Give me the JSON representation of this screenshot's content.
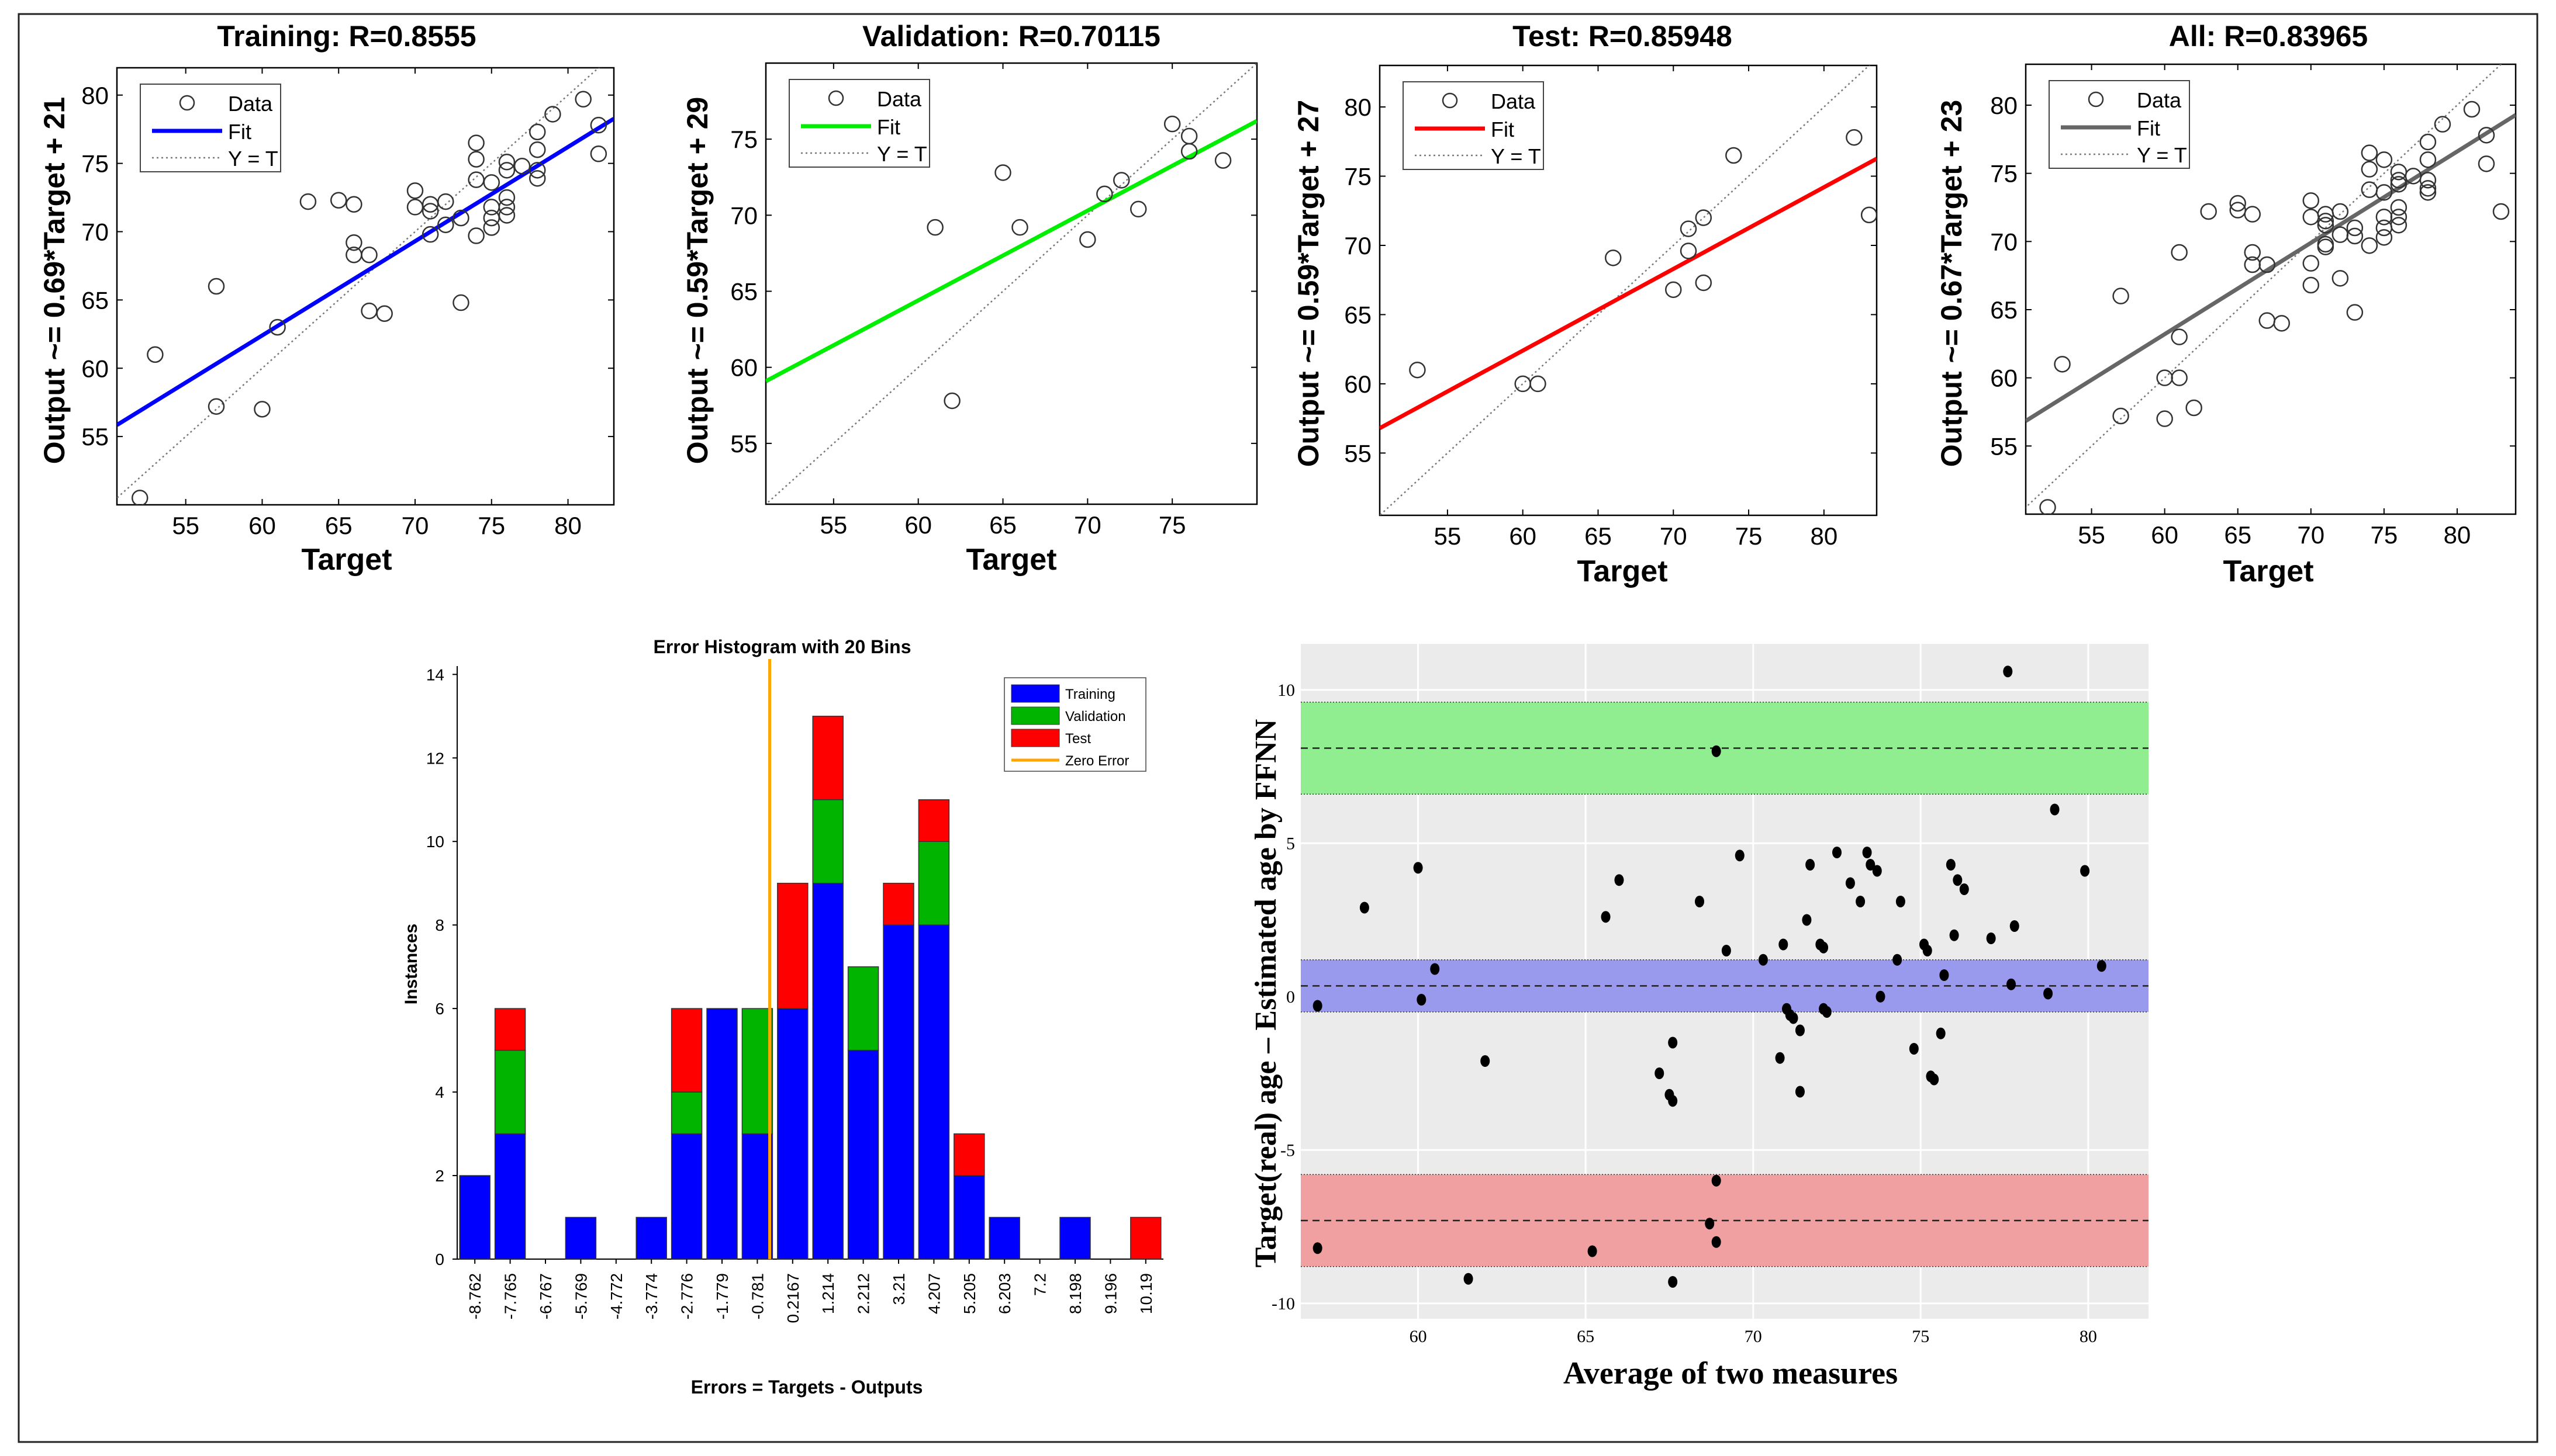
{
  "chart_data": [
    {
      "type": "scatter",
      "title": "Training: R=0.8555",
      "xlabel": "Target",
      "ylabel": "Output ~= 0.69*Target + 21",
      "xlim": [
        50.5,
        83
      ],
      "ylim": [
        50,
        82
      ],
      "xticks": [
        "55",
        "60",
        "65",
        "70",
        "75",
        "80"
      ],
      "yticks": [
        "55",
        "60",
        "65",
        "70",
        "75",
        "80"
      ],
      "fit": {
        "slope": 0.69,
        "intercept": 21,
        "color": "#0000ff"
      },
      "legend": [
        "Data",
        "Fit",
        "Y = T"
      ],
      "points": [
        [
          52,
          50.5
        ],
        [
          53,
          61
        ],
        [
          57,
          66
        ],
        [
          57,
          57.2
        ],
        [
          60,
          57
        ],
        [
          61,
          63
        ],
        [
          63,
          72.2
        ],
        [
          65,
          72.3
        ],
        [
          66,
          72
        ],
        [
          66,
          69.2
        ],
        [
          66,
          68.3
        ],
        [
          67,
          68.3
        ],
        [
          67,
          64.2
        ],
        [
          68,
          64
        ],
        [
          70,
          73
        ],
        [
          70,
          71.8
        ],
        [
          71,
          72
        ],
        [
          71,
          71.5
        ],
        [
          71,
          69.8
        ],
        [
          72,
          70.5
        ],
        [
          72,
          72.2
        ],
        [
          73,
          71
        ],
        [
          73,
          64.8
        ],
        [
          74,
          76.5
        ],
        [
          74,
          75.3
        ],
        [
          74,
          73.8
        ],
        [
          74,
          69.7
        ],
        [
          75,
          73.6
        ],
        [
          75,
          71.8
        ],
        [
          75,
          71
        ],
        [
          75,
          70.3
        ],
        [
          76,
          75.1
        ],
        [
          76,
          74.5
        ],
        [
          76,
          72.5
        ],
        [
          76,
          71.8
        ],
        [
          76,
          71.2
        ],
        [
          77,
          74.8
        ],
        [
          78,
          77.3
        ],
        [
          78,
          76
        ],
        [
          78,
          74.5
        ],
        [
          78,
          73.9
        ],
        [
          79,
          78.6
        ],
        [
          81,
          79.7
        ],
        [
          82,
          77.8
        ],
        [
          82,
          75.7
        ]
      ]
    },
    {
      "type": "scatter",
      "title": "Validation: R=0.70115",
      "xlabel": "Target",
      "ylabel": "Output ~= 0.59*Target + 29",
      "xlim": [
        51,
        80
      ],
      "ylim": [
        51,
        80
      ],
      "xticks": [
        "55",
        "60",
        "65",
        "70",
        "75"
      ],
      "yticks": [
        "55",
        "60",
        "65",
        "70",
        "75"
      ],
      "fit": {
        "slope": 0.59,
        "intercept": 29,
        "color": "#00ee00"
      },
      "legend": [
        "Data",
        "Fit",
        "Y = T"
      ],
      "points": [
        [
          61,
          69.2
        ],
        [
          62,
          57.8
        ],
        [
          65,
          72.8
        ],
        [
          66,
          69.2
        ],
        [
          70,
          68.4
        ],
        [
          71,
          71.4
        ],
        [
          72,
          72.3
        ],
        [
          73,
          70.4
        ],
        [
          75,
          76
        ],
        [
          76,
          75.2
        ],
        [
          76,
          74.2
        ],
        [
          78,
          73.6
        ]
      ]
    },
    {
      "type": "scatter",
      "title": "Test: R=0.85948",
      "xlabel": "Target",
      "ylabel": "Output ~= 0.59*Target + 27",
      "xlim": [
        50.5,
        83.5
      ],
      "ylim": [
        50.5,
        83
      ],
      "xticks": [
        "55",
        "60",
        "65",
        "70",
        "75",
        "80"
      ],
      "yticks": [
        "55",
        "60",
        "65",
        "70",
        "75",
        "80"
      ],
      "fit": {
        "slope": 0.59,
        "intercept": 27,
        "color": "#ff0000"
      },
      "legend": [
        "Data",
        "Fit",
        "Y = T"
      ],
      "points": [
        [
          53,
          61
        ],
        [
          60,
          60
        ],
        [
          61,
          60
        ],
        [
          66,
          69.1
        ],
        [
          70,
          66.8
        ],
        [
          71,
          71.2
        ],
        [
          71,
          69.6
        ],
        [
          72,
          72
        ],
        [
          72,
          67.3
        ],
        [
          74,
          76.5
        ],
        [
          82,
          77.8
        ],
        [
          83,
          72.2
        ]
      ]
    },
    {
      "type": "scatter",
      "title": "All: R=0.83965",
      "xlabel": "Target",
      "ylabel": "Output ~= 0.67*Target + 23",
      "xlim": [
        50.5,
        84
      ],
      "ylim": [
        50,
        83
      ],
      "xticks": [
        "55",
        "60",
        "65",
        "70",
        "75",
        "80"
      ],
      "yticks": [
        "55",
        "60",
        "65",
        "70",
        "75",
        "80"
      ],
      "fit": {
        "slope": 0.67,
        "intercept": 23,
        "color": "#666666"
      },
      "legend": [
        "Data",
        "Fit",
        "Y = T"
      ],
      "points": [
        [
          52,
          50.5
        ],
        [
          53,
          61
        ],
        [
          57,
          66
        ],
        [
          57,
          57.2
        ],
        [
          60,
          57
        ],
        [
          60,
          60
        ],
        [
          61,
          63
        ],
        [
          61,
          60
        ],
        [
          61,
          69.2
        ],
        [
          62,
          57.8
        ],
        [
          63,
          72.2
        ],
        [
          65,
          72.8
        ],
        [
          65,
          72.3
        ],
        [
          66,
          72
        ],
        [
          66,
          69.2
        ],
        [
          66,
          68.3
        ],
        [
          67,
          68.3
        ],
        [
          67,
          64.2
        ],
        [
          68,
          64
        ],
        [
          70,
          73
        ],
        [
          70,
          71.8
        ],
        [
          70,
          68.4
        ],
        [
          70,
          66.8
        ],
        [
          71,
          72
        ],
        [
          71,
          71.5
        ],
        [
          71,
          69.8
        ],
        [
          71,
          71.2
        ],
        [
          71,
          69.6
        ],
        [
          72,
          70.5
        ],
        [
          72,
          72.2
        ],
        [
          72,
          67.3
        ],
        [
          73,
          71
        ],
        [
          73,
          64.8
        ],
        [
          73,
          70.4
        ],
        [
          74,
          76.5
        ],
        [
          74,
          75.3
        ],
        [
          74,
          73.8
        ],
        [
          74,
          69.7
        ],
        [
          75,
          73.6
        ],
        [
          75,
          71.8
        ],
        [
          75,
          71
        ],
        [
          75,
          70.3
        ],
        [
          75,
          76
        ],
        [
          76,
          75.1
        ],
        [
          76,
          74.5
        ],
        [
          76,
          72.5
        ],
        [
          76,
          71.8
        ],
        [
          76,
          71.2
        ],
        [
          76,
          74.2
        ],
        [
          77,
          74.8
        ],
        [
          78,
          77.3
        ],
        [
          78,
          76
        ],
        [
          78,
          74.5
        ],
        [
          78,
          73.9
        ],
        [
          78,
          73.6
        ],
        [
          79,
          78.6
        ],
        [
          81,
          79.7
        ],
        [
          82,
          77.8
        ],
        [
          82,
          75.7
        ],
        [
          83,
          72.2
        ]
      ]
    },
    {
      "type": "bar",
      "stacked": true,
      "title": "Error Histogram with 20 Bins",
      "xlabel": "Errors = Targets - Outputs",
      "ylabel": "Instances",
      "ylim": [
        0,
        14.2
      ],
      "yticks": [
        "0",
        "2",
        "4",
        "6",
        "8",
        "10",
        "12",
        "14"
      ],
      "categories": [
        "-8.762",
        "-7.765",
        "-6.767",
        "-5.769",
        "-4.772",
        "-3.774",
        "-2.776",
        "-1.779",
        "-0.781",
        "0.2167",
        "1.214",
        "2.212",
        "3.21",
        "4.207",
        "5.205",
        "6.203",
        "7.2",
        "8.198",
        "9.196",
        "10.19"
      ],
      "series": [
        {
          "name": "Training",
          "color": "#0000ff",
          "values": [
            2,
            3,
            0,
            1,
            0,
            1,
            3,
            6,
            3,
            6,
            9,
            5,
            8,
            8,
            2,
            1,
            0,
            1,
            0,
            0
          ]
        },
        {
          "name": "Validation",
          "color": "#00b400",
          "values": [
            0,
            2,
            0,
            0,
            0,
            0,
            1,
            0,
            3,
            0,
            2,
            2,
            0,
            2,
            0,
            0,
            0,
            0,
            0,
            0
          ]
        },
        {
          "name": "Test",
          "color": "#ff0000",
          "values": [
            0,
            1,
            0,
            0,
            0,
            0,
            2,
            0,
            0,
            3,
            2,
            0,
            1,
            1,
            1,
            0,
            0,
            0,
            0,
            1
          ]
        }
      ],
      "zero_error": {
        "name": "Zero Error",
        "color": "#ffa500",
        "x_bin": 8.85
      }
    },
    {
      "type": "scatter",
      "title": "",
      "xlabel": "Average of two measures",
      "ylabel": "Target(real) age – Estimated age by FFNN",
      "xlim": [
        56.5,
        81.8
      ],
      "ylim": [
        -10.5,
        11.5
      ],
      "xticks": [
        "60",
        "65",
        "70",
        "75",
        "80"
      ],
      "yticks": [
        "-10",
        "-5",
        "0",
        "5",
        "10"
      ],
      "bands": [
        {
          "name": "upper limit of agreement",
          "color": "#90ee90",
          "from": 6.6,
          "to": 9.6,
          "mean": 8.1
        },
        {
          "name": "mean difference",
          "color": "#9999ee",
          "from": -0.5,
          "to": 1.2,
          "mean": 0.35
        },
        {
          "name": "lower limit of agreement",
          "color": "#f0a0a0",
          "from": -8.8,
          "to": -5.8,
          "mean": -7.3
        }
      ],
      "points": [
        [
          57,
          -0.3
        ],
        [
          57,
          -8.2
        ],
        [
          58.4,
          2.9
        ],
        [
          60,
          4.2
        ],
        [
          60.1,
          -0.1
        ],
        [
          60.5,
          0.9
        ],
        [
          61.5,
          -9.2
        ],
        [
          62,
          -2.1
        ],
        [
          65.2,
          -8.3
        ],
        [
          65.6,
          2.6
        ],
        [
          66,
          3.8
        ],
        [
          67.2,
          -2.5
        ],
        [
          67.5,
          -3.2
        ],
        [
          67.6,
          -3.4
        ],
        [
          67.6,
          -1.5
        ],
        [
          67.6,
          -9.3
        ],
        [
          68.4,
          3.1
        ],
        [
          68.7,
          -7.4
        ],
        [
          68.9,
          8.0
        ],
        [
          68.9,
          -6.0
        ],
        [
          68.9,
          -8.0
        ],
        [
          69.2,
          1.5
        ],
        [
          69.6,
          4.6
        ],
        [
          70.3,
          1.2
        ],
        [
          70.8,
          -2
        ],
        [
          70.9,
          1.7
        ],
        [
          71,
          -0.4
        ],
        [
          71.1,
          -0.6
        ],
        [
          71.2,
          -0.7
        ],
        [
          71.4,
          -1.1
        ],
        [
          71.4,
          -3.1
        ],
        [
          71.6,
          2.5
        ],
        [
          71.7,
          4.3
        ],
        [
          72,
          1.7
        ],
        [
          72.1,
          1.6
        ],
        [
          72.1,
          -0.4
        ],
        [
          72.2,
          -0.5
        ],
        [
          72.5,
          4.7
        ],
        [
          72.9,
          3.7
        ],
        [
          73.2,
          3.1
        ],
        [
          73.4,
          4.7
        ],
        [
          73.5,
          4.3
        ],
        [
          73.7,
          4.1
        ],
        [
          73.8,
          0
        ],
        [
          74.3,
          1.2
        ],
        [
          74.4,
          3.1
        ],
        [
          74.8,
          -1.7
        ],
        [
          75.1,
          1.7
        ],
        [
          75.2,
          1.5
        ],
        [
          75.3,
          -2.6
        ],
        [
          75.4,
          -2.7
        ],
        [
          75.6,
          -1.2
        ],
        [
          75.7,
          0.7
        ],
        [
          75.9,
          4.3
        ],
        [
          76,
          2
        ],
        [
          76.1,
          3.8
        ],
        [
          76.3,
          3.5
        ],
        [
          77.1,
          1.9
        ],
        [
          77.6,
          10.6
        ],
        [
          77.7,
          0.4
        ],
        [
          77.8,
          2.3
        ],
        [
          78.8,
          0.1
        ],
        [
          79,
          6.1
        ],
        [
          79.9,
          4.1
        ],
        [
          80.4,
          1
        ]
      ]
    }
  ]
}
